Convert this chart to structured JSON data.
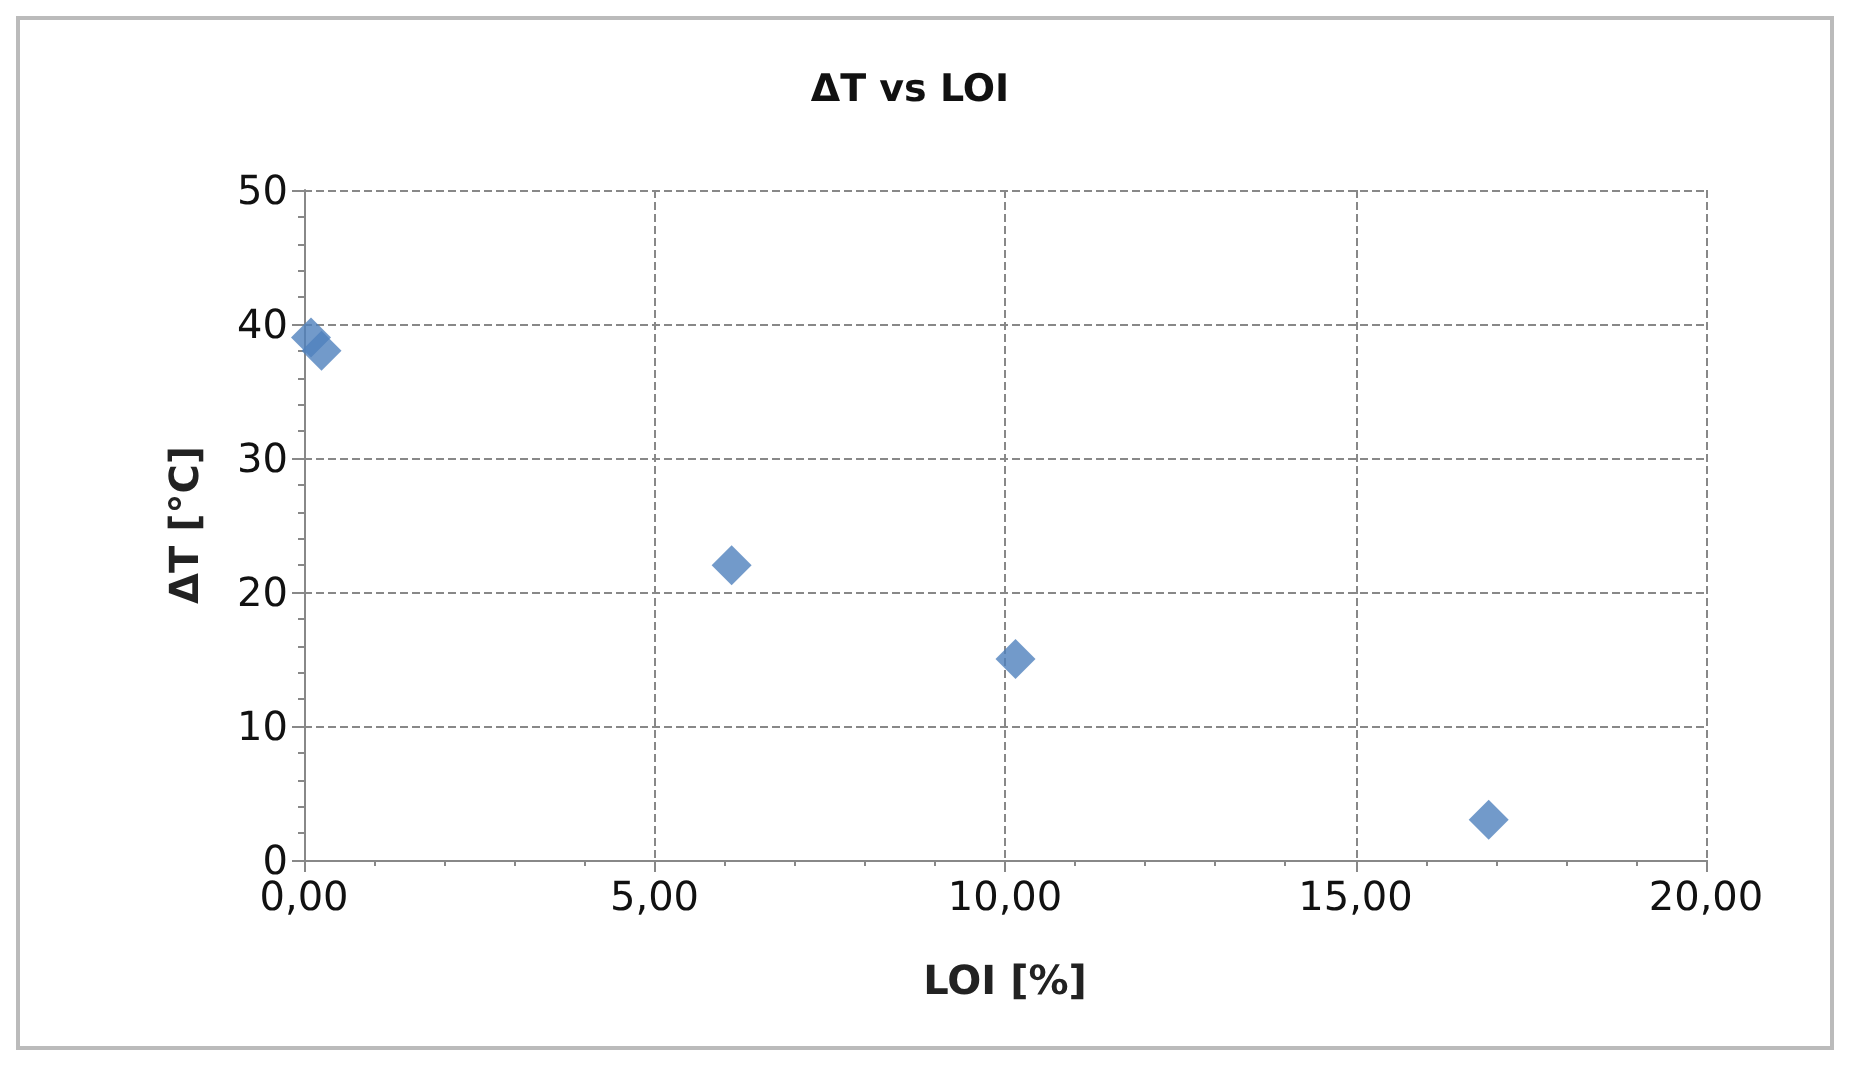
{
  "chart_data": {
    "type": "scatter",
    "title": "ΔT vs LOI",
    "xlabel": "LOI [%]",
    "ylabel": "ΔT [°C]",
    "x": [
      0.1,
      0.25,
      6.1,
      10.15,
      16.9
    ],
    "series": [
      {
        "color": "#4f81bd",
        "values": [
          39,
          38,
          22,
          15,
          3
        ]
      }
    ],
    "xlim": [
      0,
      20
    ],
    "xticks": [
      {
        "value": 0,
        "label": "0,00"
      },
      {
        "value": 5,
        "label": "5,00"
      },
      {
        "value": 10,
        "label": "10,00"
      },
      {
        "value": 15,
        "label": "15,00"
      },
      {
        "value": 20,
        "label": "20,00"
      }
    ],
    "ylim": [
      0,
      50
    ],
    "yticks": [
      0,
      10,
      20,
      30,
      40,
      50
    ],
    "grid": true,
    "marker": "diamond"
  }
}
